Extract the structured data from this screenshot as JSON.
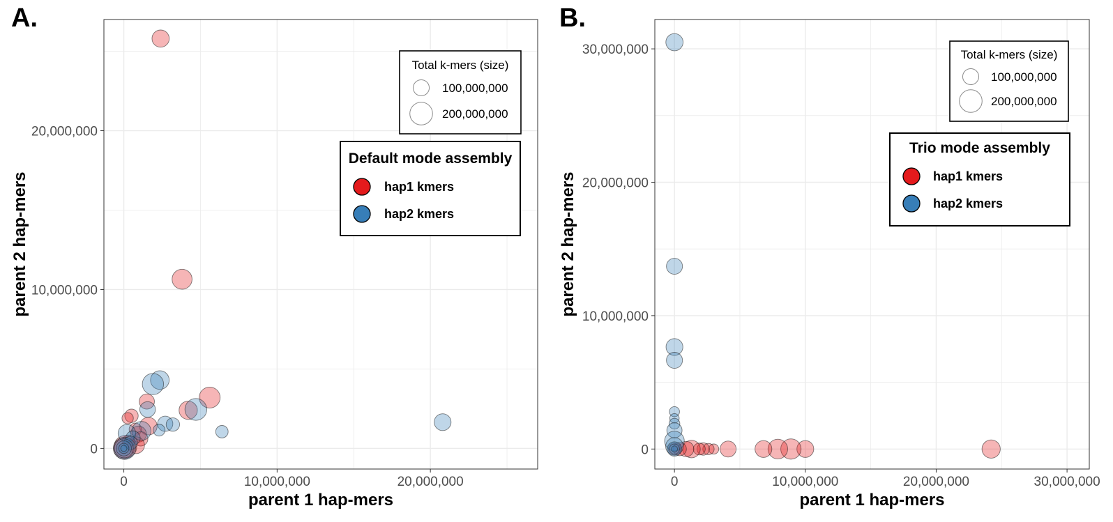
{
  "chart_data": [
    {
      "type": "scatter",
      "panel_label": "A.",
      "xlabel": "parent 1 hap-mers",
      "ylabel": "parent 2 hap-mers",
      "xlim": [
        -1300000,
        27000000
      ],
      "ylim": [
        -1300000,
        27000000
      ],
      "x_ticks": [
        0,
        10000000,
        20000000
      ],
      "x_tick_labels": [
        "0",
        "10,000,000",
        "20,000,000"
      ],
      "y_ticks": [
        0,
        10000000,
        20000000
      ],
      "y_tick_labels": [
        "0",
        "10,000,000",
        "20,000,000"
      ],
      "grid": true,
      "size_legend": {
        "title": "Total k-mers (size)",
        "entries": [
          {
            "label": "100,000,000",
            "value": 100000000
          },
          {
            "label": "200,000,000",
            "value": 200000000
          }
        ],
        "position": "top-right"
      },
      "color_legend": {
        "title": "Default mode assembly",
        "position": "right",
        "entries": [
          {
            "label": "hap1 kmers",
            "color": "#e41a1c"
          },
          {
            "label": "hap2 kmers",
            "color": "#377eb8"
          }
        ]
      },
      "series": [
        {
          "name": "hap1 kmers",
          "color": "#e41a1c",
          "points": [
            {
              "x": 2400000,
              "y": 25800000,
              "size": 115000000
            },
            {
              "x": 3800000,
              "y": 10650000,
              "size": 155000000
            },
            {
              "x": 5600000,
              "y": 3200000,
              "size": 170000000
            },
            {
              "x": 4200000,
              "y": 2400000,
              "size": 130000000
            },
            {
              "x": 1500000,
              "y": 2950000,
              "size": 90000000
            },
            {
              "x": 500000,
              "y": 2050000,
              "size": 70000000
            },
            {
              "x": 250000,
              "y": 1900000,
              "size": 50000000
            },
            {
              "x": 1600000,
              "y": 1400000,
              "size": 120000000
            },
            {
              "x": 750000,
              "y": 1200000,
              "size": 60000000
            },
            {
              "x": 950000,
              "y": 900000,
              "size": 100000000
            },
            {
              "x": 1100000,
              "y": 600000,
              "size": 80000000
            },
            {
              "x": 800000,
              "y": 200000,
              "size": 110000000
            },
            {
              "x": 300000,
              "y": 450000,
              "size": 60000000
            },
            {
              "x": 100000,
              "y": 100000,
              "size": 200000000
            },
            {
              "x": 0,
              "y": 0,
              "size": 170000000
            }
          ]
        },
        {
          "name": "hap2 kmers",
          "color": "#377eb8",
          "points": [
            {
              "x": 20800000,
              "y": 1650000,
              "size": 110000000
            },
            {
              "x": 2350000,
              "y": 4300000,
              "size": 135000000
            },
            {
              "x": 1900000,
              "y": 4050000,
              "size": 175000000
            },
            {
              "x": 4700000,
              "y": 2450000,
              "size": 185000000
            },
            {
              "x": 1550000,
              "y": 2450000,
              "size": 95000000
            },
            {
              "x": 6400000,
              "y": 1050000,
              "size": 60000000
            },
            {
              "x": 2700000,
              "y": 1550000,
              "size": 90000000
            },
            {
              "x": 3200000,
              "y": 1500000,
              "size": 70000000
            },
            {
              "x": 2300000,
              "y": 1150000,
              "size": 55000000
            },
            {
              "x": 1150000,
              "y": 1100000,
              "size": 140000000
            },
            {
              "x": 200000,
              "y": 950000,
              "size": 120000000
            },
            {
              "x": 600000,
              "y": 650000,
              "size": 80000000
            },
            {
              "x": 450000,
              "y": 350000,
              "size": 70000000
            },
            {
              "x": 50000,
              "y": 0,
              "size": 190000000
            },
            {
              "x": 0,
              "y": 0,
              "size": 140000000
            },
            {
              "x": 0,
              "y": 0,
              "size": 90000000
            },
            {
              "x": 0,
              "y": 0,
              "size": 40000000
            },
            {
              "x": 0,
              "y": 0,
              "size": 15000000
            }
          ]
        }
      ]
    },
    {
      "type": "scatter",
      "panel_label": "B.",
      "xlabel": "parent 1 hap-mers",
      "ylabel": "parent 2 hap-mers",
      "xlim": [
        -1500000,
        31700000
      ],
      "ylim": [
        -1500000,
        32200000
      ],
      "x_ticks": [
        0,
        10000000,
        20000000,
        30000000
      ],
      "x_tick_labels": [
        "0",
        "10,000,000",
        "20,000,000",
        "30,000,000"
      ],
      "y_ticks": [
        0,
        10000000,
        20000000,
        30000000
      ],
      "y_tick_labels": [
        "0",
        "10,000,000",
        "20,000,000",
        "30,000,000"
      ],
      "grid": true,
      "size_legend": {
        "title": "Total k-mers (size)",
        "entries": [
          {
            "label": "100,000,000",
            "value": 100000000
          },
          {
            "label": "200,000,000",
            "value": 200000000
          }
        ],
        "position": "top-right"
      },
      "color_legend": {
        "title": "Trio mode assembly",
        "position": "right",
        "entries": [
          {
            "label": "hap1 kmers",
            "color": "#e41a1c"
          },
          {
            "label": "hap2 kmers",
            "color": "#377eb8"
          }
        ]
      },
      "series": [
        {
          "name": "hap1 kmers",
          "color": "#e41a1c",
          "points": [
            {
              "x": 24200000,
              "y": 0,
              "size": 130000000
            },
            {
              "x": 10000000,
              "y": 0,
              "size": 110000000
            },
            {
              "x": 8900000,
              "y": 0,
              "size": 160000000
            },
            {
              "x": 7900000,
              "y": 0,
              "size": 150000000
            },
            {
              "x": 6800000,
              "y": 0,
              "size": 110000000
            },
            {
              "x": 4100000,
              "y": 0,
              "size": 100000000
            },
            {
              "x": 3000000,
              "y": 0,
              "size": 40000000
            },
            {
              "x": 2600000,
              "y": 0,
              "size": 50000000
            },
            {
              "x": 2200000,
              "y": 0,
              "size": 60000000
            },
            {
              "x": 1900000,
              "y": 0,
              "size": 55000000
            },
            {
              "x": 1300000,
              "y": 0,
              "size": 120000000
            },
            {
              "x": 900000,
              "y": 0,
              "size": 90000000
            },
            {
              "x": 400000,
              "y": 0,
              "size": 70000000
            },
            {
              "x": 0,
              "y": 0,
              "size": 60000000
            }
          ]
        },
        {
          "name": "hap2 kmers",
          "color": "#377eb8",
          "points": [
            {
              "x": 0,
              "y": 30500000,
              "size": 115000000
            },
            {
              "x": 0,
              "y": 13700000,
              "size": 100000000
            },
            {
              "x": 0,
              "y": 7650000,
              "size": 110000000
            },
            {
              "x": 0,
              "y": 6650000,
              "size": 100000000
            },
            {
              "x": 0,
              "y": 2800000,
              "size": 40000000
            },
            {
              "x": 0,
              "y": 2300000,
              "size": 35000000
            },
            {
              "x": 0,
              "y": 1900000,
              "size": 45000000
            },
            {
              "x": 0,
              "y": 1400000,
              "size": 90000000
            },
            {
              "x": 0,
              "y": 600000,
              "size": 150000000
            },
            {
              "x": 0,
              "y": 200000,
              "size": 120000000
            },
            {
              "x": 0,
              "y": 0,
              "size": 80000000
            },
            {
              "x": 0,
              "y": 0,
              "size": 40000000
            },
            {
              "x": 0,
              "y": 0,
              "size": 15000000
            }
          ]
        }
      ]
    }
  ]
}
